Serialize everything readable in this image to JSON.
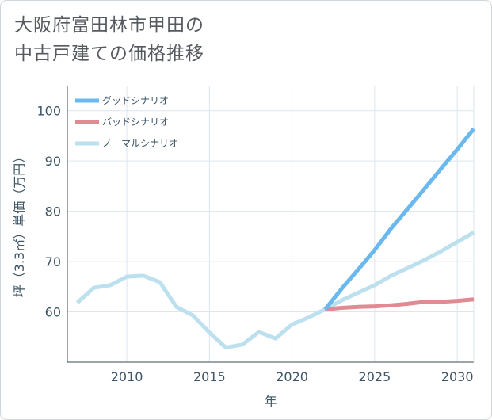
{
  "title_line1": "大阪府富田林市甲田の",
  "title_line2": "中古戸建ての価格推移",
  "chart_data": {
    "type": "line",
    "xlabel": "年",
    "ylabel": "坪（3.3㎡）単価（万円）",
    "xlim": [
      2006.4,
      2031
    ],
    "ylim": [
      50,
      105
    ],
    "xticks": [
      2010,
      2015,
      2020,
      2025,
      2030
    ],
    "yticks": [
      60,
      70,
      80,
      90,
      100
    ],
    "grid": true,
    "legend_position": "top-left",
    "series": [
      {
        "name": "グッドシナリオ",
        "color": "#6ab8ee",
        "x": [
          2022,
          2023,
          2024,
          2025,
          2026,
          2027,
          2028,
          2029,
          2030,
          2031
        ],
        "y": [
          60.5,
          64.6,
          68.4,
          72.3,
          76.6,
          80.5,
          84.4,
          88.4,
          92.3,
          96.4
        ]
      },
      {
        "name": "バッドシナリオ",
        "color": "#e08a94",
        "x": [
          2022,
          2023,
          2024,
          2025,
          2026,
          2027,
          2028,
          2029,
          2030,
          2031
        ],
        "y": [
          60.5,
          60.8,
          61.0,
          61.1,
          61.3,
          61.6,
          62.0,
          62.0,
          62.2,
          62.5
        ]
      },
      {
        "name": "ノーマルシナリオ",
        "color": "#bde0ef",
        "x": [
          2007,
          2008,
          2009,
          2010,
          2011,
          2012,
          2013,
          2014,
          2015,
          2016,
          2017,
          2018,
          2019,
          2020,
          2021,
          2022,
          2023,
          2024,
          2025,
          2026,
          2027,
          2028,
          2029,
          2030,
          2031
        ],
        "y": [
          61.8,
          64.8,
          65.3,
          67.0,
          67.2,
          65.9,
          61.0,
          59.3,
          55.9,
          52.9,
          53.5,
          56.0,
          54.7,
          57.5,
          58.9,
          60.5,
          62.3,
          63.8,
          65.3,
          67.2,
          68.7,
          70.3,
          72.0,
          73.9,
          75.8
        ]
      }
    ]
  }
}
